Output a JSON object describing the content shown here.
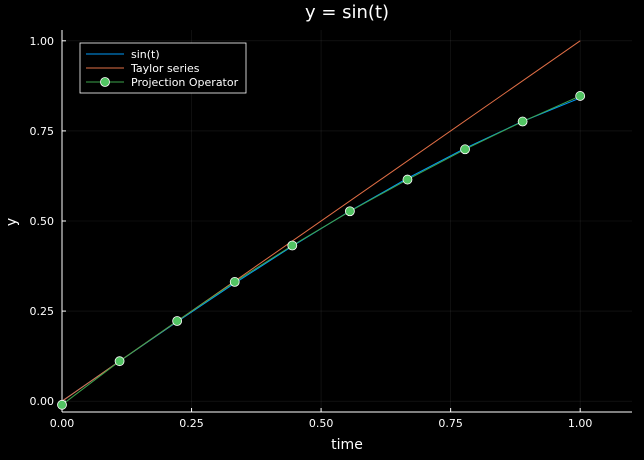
{
  "chart_data": {
    "type": "line",
    "title": "y = sin(t)",
    "xlabel": "time",
    "ylabel": "y",
    "xlim": [
      0,
      1.1
    ],
    "ylim": [
      -0.03,
      1.03
    ],
    "xticks": [
      0,
      0.25,
      0.5,
      0.75,
      1
    ],
    "xtick_labels": [
      "0.00",
      "0.25",
      "0.50",
      "0.75",
      "1.00"
    ],
    "yticks": [
      0,
      0.25,
      0.5,
      0.75,
      1
    ],
    "ytick_labels": [
      "0.00",
      "0.25",
      "0.50",
      "0.75",
      "1.00"
    ],
    "grid": true,
    "legend_position": "top-left",
    "background": "#000000",
    "series": [
      {
        "name": "sin(t)",
        "color": "#009af9",
        "marker": "none",
        "x": [
          0,
          0.1111,
          0.2222,
          0.3333,
          0.4444,
          0.5556,
          0.6667,
          0.7778,
          0.8889,
          1.0
        ],
        "y": [
          0,
          0.1109,
          0.2204,
          0.3272,
          0.43,
          0.5275,
          0.6184,
          0.7016,
          0.7764,
          0.8415
        ]
      },
      {
        "name": "Taylor series",
        "color": "#e26f46",
        "marker": "none",
        "x": [
          0,
          1.0
        ],
        "y": [
          0,
          1.0
        ]
      },
      {
        "name": "Projection Operator",
        "color": "#3da44d",
        "marker": "circle",
        "marker_color": "#52c463",
        "x": [
          0,
          0.1111,
          0.2222,
          0.3333,
          0.4444,
          0.5556,
          0.6667,
          0.7778,
          0.8889,
          1.0
        ],
        "y": [
          -0.01,
          0.111,
          0.2225,
          0.331,
          0.432,
          0.527,
          0.615,
          0.699,
          0.776,
          0.847
        ]
      }
    ]
  }
}
